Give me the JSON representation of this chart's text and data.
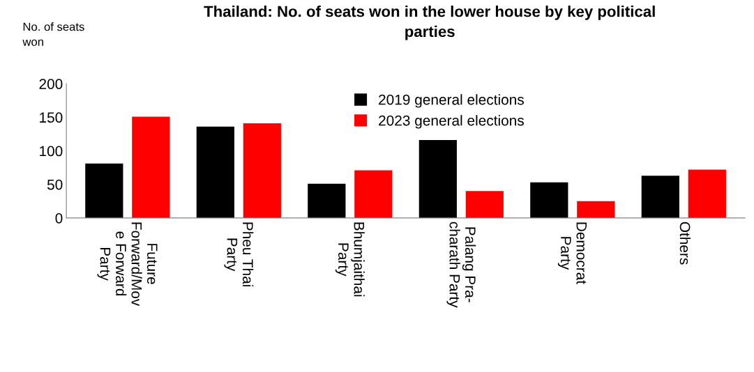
{
  "chart_data": {
    "type": "bar",
    "title": "Thailand: No. of seats won in the lower house by key political\nparties",
    "ylabel": "No. of seats\nwon",
    "categories": [
      "Future\nForward/Mov\ne Forward\nParty",
      "Pheu Thai\nParty",
      "Bhumjaithai\nParty",
      "Palang Pra-\ncharath Party",
      "Democrat\nParty",
      "Others"
    ],
    "series": [
      {
        "name": "2019 general elections",
        "color": "#000000",
        "values": [
          81,
          136,
          51,
          116,
          53,
          63
        ]
      },
      {
        "name": "2023 general elections",
        "color": "#ff0000",
        "values": [
          151,
          141,
          71,
          40,
          25,
          72
        ]
      }
    ],
    "ylim": [
      0,
      200
    ],
    "yticks": [
      0,
      50,
      100,
      150,
      200
    ],
    "grid": false,
    "legend": "top"
  }
}
